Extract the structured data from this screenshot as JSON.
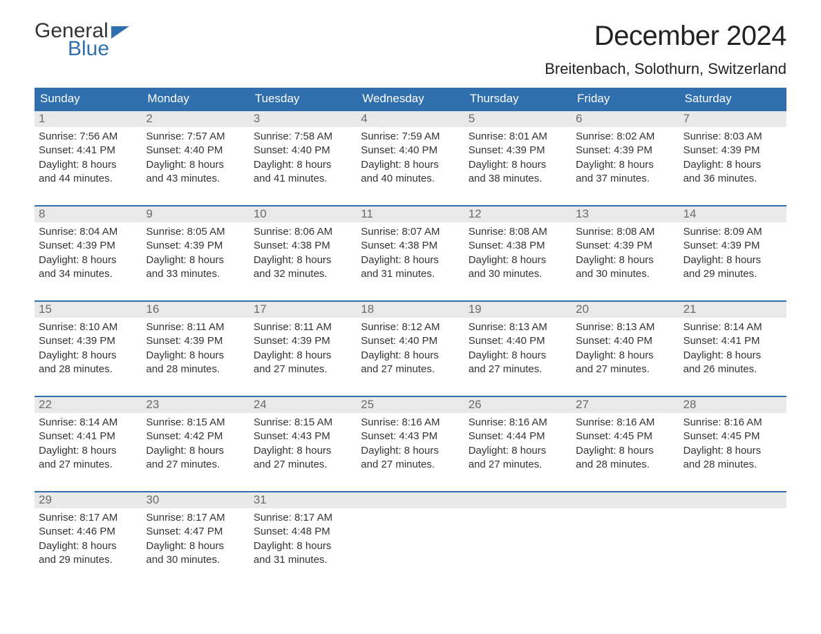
{
  "brand": {
    "word1": "General",
    "word2": "Blue"
  },
  "title": "December 2024",
  "location": "Breitenbach, Solothurn, Switzerland",
  "colors": {
    "accent": "#2f6fad",
    "header_bg": "#2f6fad",
    "header_text": "#ffffff",
    "daynum_bg": "#e9e9e9",
    "daynum_text": "#6a6a6a",
    "body_text": "#333333",
    "background": "#ffffff",
    "week_border": "#2f6fad"
  },
  "weekdays": [
    "Sunday",
    "Monday",
    "Tuesday",
    "Wednesday",
    "Thursday",
    "Friday",
    "Saturday"
  ],
  "weeks": [
    [
      {
        "n": "1",
        "sunrise": "7:56 AM",
        "sunset": "4:41 PM",
        "dh": "8",
        "dm": "44"
      },
      {
        "n": "2",
        "sunrise": "7:57 AM",
        "sunset": "4:40 PM",
        "dh": "8",
        "dm": "43"
      },
      {
        "n": "3",
        "sunrise": "7:58 AM",
        "sunset": "4:40 PM",
        "dh": "8",
        "dm": "41"
      },
      {
        "n": "4",
        "sunrise": "7:59 AM",
        "sunset": "4:40 PM",
        "dh": "8",
        "dm": "40"
      },
      {
        "n": "5",
        "sunrise": "8:01 AM",
        "sunset": "4:39 PM",
        "dh": "8",
        "dm": "38"
      },
      {
        "n": "6",
        "sunrise": "8:02 AM",
        "sunset": "4:39 PM",
        "dh": "8",
        "dm": "37"
      },
      {
        "n": "7",
        "sunrise": "8:03 AM",
        "sunset": "4:39 PM",
        "dh": "8",
        "dm": "36"
      }
    ],
    [
      {
        "n": "8",
        "sunrise": "8:04 AM",
        "sunset": "4:39 PM",
        "dh": "8",
        "dm": "34"
      },
      {
        "n": "9",
        "sunrise": "8:05 AM",
        "sunset": "4:39 PM",
        "dh": "8",
        "dm": "33"
      },
      {
        "n": "10",
        "sunrise": "8:06 AM",
        "sunset": "4:38 PM",
        "dh": "8",
        "dm": "32"
      },
      {
        "n": "11",
        "sunrise": "8:07 AM",
        "sunset": "4:38 PM",
        "dh": "8",
        "dm": "31"
      },
      {
        "n": "12",
        "sunrise": "8:08 AM",
        "sunset": "4:38 PM",
        "dh": "8",
        "dm": "30"
      },
      {
        "n": "13",
        "sunrise": "8:08 AM",
        "sunset": "4:39 PM",
        "dh": "8",
        "dm": "30"
      },
      {
        "n": "14",
        "sunrise": "8:09 AM",
        "sunset": "4:39 PM",
        "dh": "8",
        "dm": "29"
      }
    ],
    [
      {
        "n": "15",
        "sunrise": "8:10 AM",
        "sunset": "4:39 PM",
        "dh": "8",
        "dm": "28"
      },
      {
        "n": "16",
        "sunrise": "8:11 AM",
        "sunset": "4:39 PM",
        "dh": "8",
        "dm": "28"
      },
      {
        "n": "17",
        "sunrise": "8:11 AM",
        "sunset": "4:39 PM",
        "dh": "8",
        "dm": "27"
      },
      {
        "n": "18",
        "sunrise": "8:12 AM",
        "sunset": "4:40 PM",
        "dh": "8",
        "dm": "27"
      },
      {
        "n": "19",
        "sunrise": "8:13 AM",
        "sunset": "4:40 PM",
        "dh": "8",
        "dm": "27"
      },
      {
        "n": "20",
        "sunrise": "8:13 AM",
        "sunset": "4:40 PM",
        "dh": "8",
        "dm": "27"
      },
      {
        "n": "21",
        "sunrise": "8:14 AM",
        "sunset": "4:41 PM",
        "dh": "8",
        "dm": "26"
      }
    ],
    [
      {
        "n": "22",
        "sunrise": "8:14 AM",
        "sunset": "4:41 PM",
        "dh": "8",
        "dm": "27"
      },
      {
        "n": "23",
        "sunrise": "8:15 AM",
        "sunset": "4:42 PM",
        "dh": "8",
        "dm": "27"
      },
      {
        "n": "24",
        "sunrise": "8:15 AM",
        "sunset": "4:43 PM",
        "dh": "8",
        "dm": "27"
      },
      {
        "n": "25",
        "sunrise": "8:16 AM",
        "sunset": "4:43 PM",
        "dh": "8",
        "dm": "27"
      },
      {
        "n": "26",
        "sunrise": "8:16 AM",
        "sunset": "4:44 PM",
        "dh": "8",
        "dm": "27"
      },
      {
        "n": "27",
        "sunrise": "8:16 AM",
        "sunset": "4:45 PM",
        "dh": "8",
        "dm": "28"
      },
      {
        "n": "28",
        "sunrise": "8:16 AM",
        "sunset": "4:45 PM",
        "dh": "8",
        "dm": "28"
      }
    ],
    [
      {
        "n": "29",
        "sunrise": "8:17 AM",
        "sunset": "4:46 PM",
        "dh": "8",
        "dm": "29"
      },
      {
        "n": "30",
        "sunrise": "8:17 AM",
        "sunset": "4:47 PM",
        "dh": "8",
        "dm": "30"
      },
      {
        "n": "31",
        "sunrise": "8:17 AM",
        "sunset": "4:48 PM",
        "dh": "8",
        "dm": "31"
      },
      null,
      null,
      null,
      null
    ]
  ],
  "labels": {
    "sunrise": "Sunrise:",
    "sunset": "Sunset:",
    "daylight_prefix": "Daylight:",
    "hours_word": "hours",
    "and_word": "and",
    "minutes_word": "minutes."
  }
}
